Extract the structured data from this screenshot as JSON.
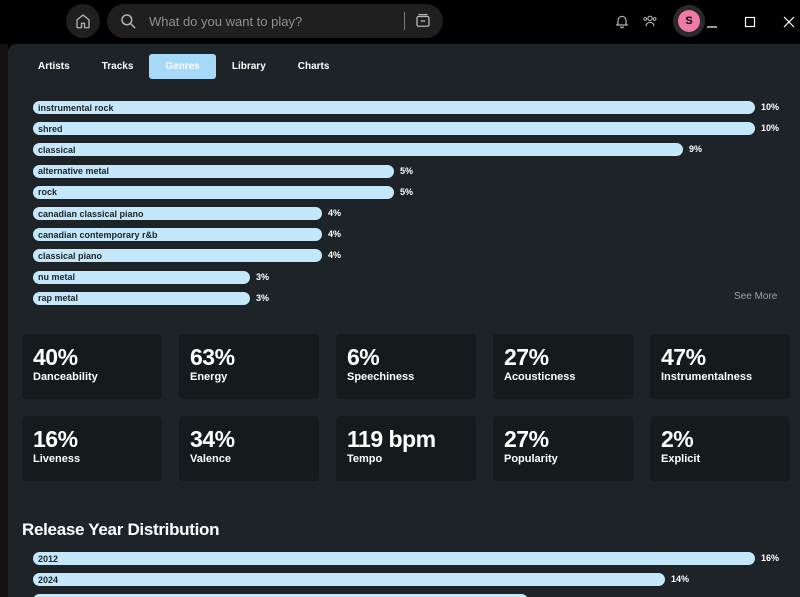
{
  "header": {
    "search_placeholder": "What do you want to play?",
    "avatar_initial": "S"
  },
  "tabs": [
    {
      "label": "Artists"
    },
    {
      "label": "Tracks"
    },
    {
      "label": "Genres",
      "active": true
    },
    {
      "label": "Library"
    },
    {
      "label": "Charts"
    }
  ],
  "genres": [
    {
      "name": "instrumental rock",
      "percent": "10%",
      "value": 10
    },
    {
      "name": "shred",
      "percent": "10%",
      "value": 10
    },
    {
      "name": "classical",
      "percent": "9%",
      "value": 9
    },
    {
      "name": "alternative metal",
      "percent": "5%",
      "value": 5
    },
    {
      "name": "rock",
      "percent": "5%",
      "value": 5
    },
    {
      "name": "canadian classical piano",
      "percent": "4%",
      "value": 4
    },
    {
      "name": "canadian contemporary r&b",
      "percent": "4%",
      "value": 4
    },
    {
      "name": "classical piano",
      "percent": "4%",
      "value": 4
    },
    {
      "name": "nu metal",
      "percent": "3%",
      "value": 3
    },
    {
      "name": "rap metal",
      "percent": "3%",
      "value": 3
    }
  ],
  "see_more_label": "See More",
  "stats": [
    {
      "value": "40%",
      "label": "Danceability"
    },
    {
      "value": "63%",
      "label": "Energy"
    },
    {
      "value": "6%",
      "label": "Speechiness"
    },
    {
      "value": "27%",
      "label": "Acousticness"
    },
    {
      "value": "47%",
      "label": "Instrumentalness"
    },
    {
      "value": "16%",
      "label": "Liveness"
    },
    {
      "value": "34%",
      "label": "Valence"
    },
    {
      "value": "119 bpm",
      "label": "Tempo"
    },
    {
      "value": "27%",
      "label": "Popularity"
    },
    {
      "value": "2%",
      "label": "Explicit"
    }
  ],
  "release_section": {
    "title": "Release Year Distribution",
    "years": [
      {
        "year": "2012",
        "percent": "16%",
        "value": 16
      },
      {
        "year": "2024",
        "percent": "14%",
        "value": 14
      }
    ]
  },
  "colors": {
    "accent": "#a6d9f7",
    "bar": "#c4e7fb",
    "panel": "#1d2327",
    "card": "#151a1d"
  }
}
